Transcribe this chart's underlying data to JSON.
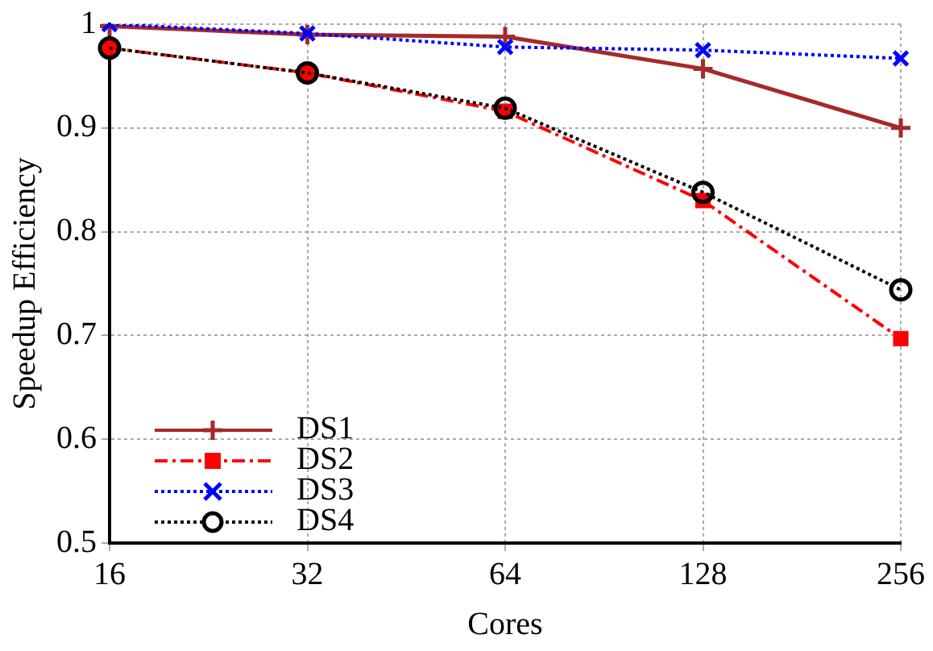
{
  "chart_data": {
    "type": "line",
    "xlabel": "Cores",
    "ylabel": "Speedup Efficiency",
    "categories": [
      "16",
      "32",
      "64",
      "128",
      "256"
    ],
    "ylim": [
      0.5,
      1
    ],
    "yticks": [
      0.5,
      0.6,
      0.7,
      0.8,
      0.9,
      1
    ],
    "grid": true,
    "legend": "bottom left",
    "series": [
      {
        "name": "DS1",
        "color": "#a52a2a",
        "marker": "cross",
        "line_style": "solid",
        "values": [
          0.998,
          0.99,
          0.988,
          0.957,
          0.9
        ]
      },
      {
        "name": "DS2",
        "color": "#ff0000",
        "marker": "square",
        "line_style": "dashed",
        "values": [
          0.977,
          0.953,
          0.916,
          0.83,
          0.697
        ]
      },
      {
        "name": "DS3",
        "color": "#0000ff",
        "marker": "x",
        "line_style": "dotted",
        "values": [
          1.0,
          0.991,
          0.978,
          0.975,
          0.967
        ]
      },
      {
        "name": "DS4",
        "color": "#000000",
        "marker": "circle",
        "line_style": "dotted",
        "values": [
          0.977,
          0.953,
          0.919,
          0.838,
          0.744
        ]
      }
    ]
  }
}
